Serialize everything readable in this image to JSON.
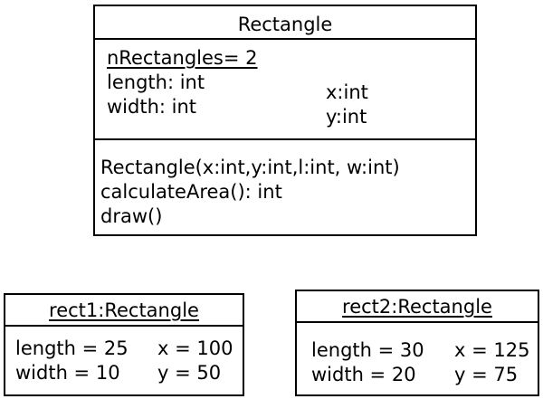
{
  "class_box": {
    "name": "Rectangle",
    "attributes": {
      "static": "nRectangles= 2",
      "length": "length: int",
      "width": "width: int",
      "x": "x:int",
      "y": "y:int"
    },
    "operations": {
      "constructor": "Rectangle(x:int,y:int,l:int, w:int)",
      "calculate_area": "calculateArea(): int",
      "draw": "draw()"
    }
  },
  "objects": [
    {
      "name": "rect1:Rectangle",
      "length": "length = 25",
      "width": "width = 10",
      "x": "x = 100",
      "y": "y = 50"
    },
    {
      "name": "rect2:Rectangle",
      "length": "length = 30",
      "width": "width = 20",
      "x": "x = 125",
      "y": "y = 75"
    }
  ]
}
